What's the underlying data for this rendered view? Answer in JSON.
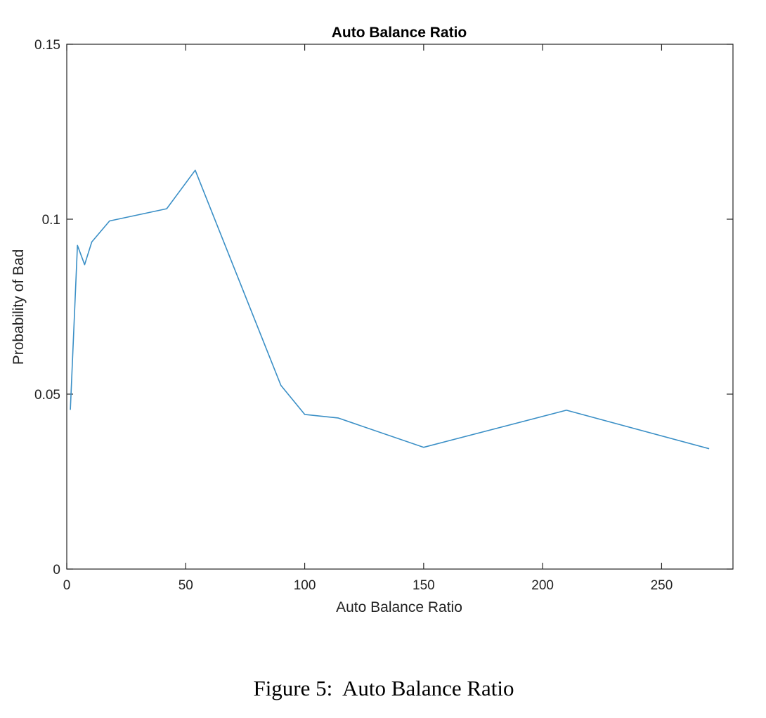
{
  "chart_data": {
    "type": "line",
    "title": "Auto Balance Ratio",
    "xlabel": "Auto Balance Ratio",
    "ylabel": "Probability of Bad",
    "xlim": [
      0,
      280
    ],
    "ylim": [
      0,
      0.15
    ],
    "x_ticks": [
      0,
      50,
      100,
      150,
      200,
      250
    ],
    "y_ticks": [
      0,
      0.05,
      0.1,
      0.15
    ],
    "x_tick_labels": [
      "0",
      "50",
      "100",
      "150",
      "200",
      "250"
    ],
    "y_tick_labels": [
      "0",
      "0.05",
      "0.1",
      "0.15"
    ],
    "grid": false,
    "line_color": "#3a8fc6",
    "series": [
      {
        "x": [
          1.5,
          4.5,
          7.5,
          10.5,
          18,
          42,
          54,
          90,
          100,
          114,
          150,
          210,
          270
        ],
        "y": [
          0.0455,
          0.0925,
          0.087,
          0.0935,
          0.0995,
          0.103,
          0.114,
          0.0525,
          0.0442,
          0.0432,
          0.0348,
          0.0454,
          0.0344
        ]
      }
    ]
  },
  "caption": "Figure 5:  Auto Balance Ratio"
}
